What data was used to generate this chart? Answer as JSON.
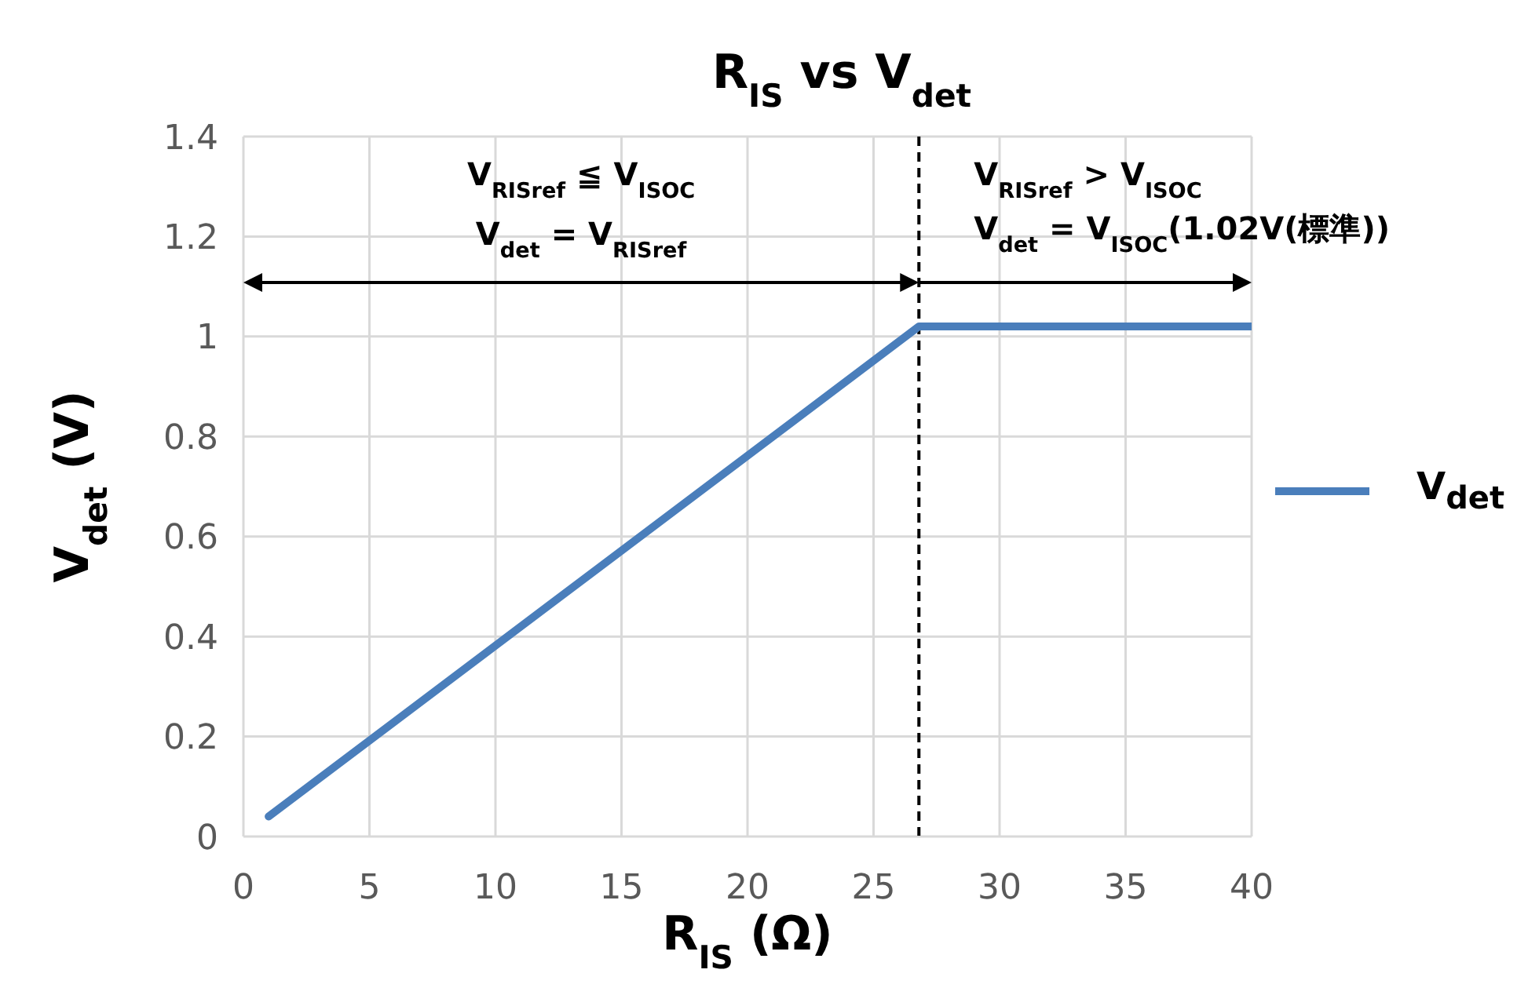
{
  "chart_data": {
    "type": "line",
    "title": "R$_{IS}$ vs V$_{det}$",
    "xlabel": "R$_{IS}$ (Ω)",
    "ylabel": "V$_{det}$ (V)",
    "x": [
      1,
      26.8,
      40
    ],
    "series": [
      {
        "name": "V$_{det}$",
        "color": "#4a7ebb",
        "values": [
          0.04,
          1.02,
          1.02
        ]
      }
    ],
    "xlim": [
      0,
      40
    ],
    "xticks": [
      0,
      5,
      10,
      15,
      20,
      25,
      30,
      35,
      40
    ],
    "ylim": [
      0,
      1.4
    ],
    "yticks": [
      0,
      0.2,
      0.4,
      0.6,
      0.8,
      1,
      1.2,
      1.4
    ],
    "grid": true,
    "legend": "right",
    "marker": "none",
    "line_style": "solid",
    "ref_lines": [
      {
        "axis": "x",
        "value": 26.8,
        "color": "#000000",
        "line_style": "dashed"
      }
    ],
    "annotations": [
      "V$_{RISref}$ ≦ V$_{ISOC}$",
      "V$_{det}$ = V$_{RISref}$",
      "V$_{RISref}$ > V$_{ISOC}$",
      {
        "text": "V$_{det}$ = V$_{ISOC}$(1.02V(標準))",
        "x": 26.8,
        "y": 1.1
      }
    ]
  }
}
